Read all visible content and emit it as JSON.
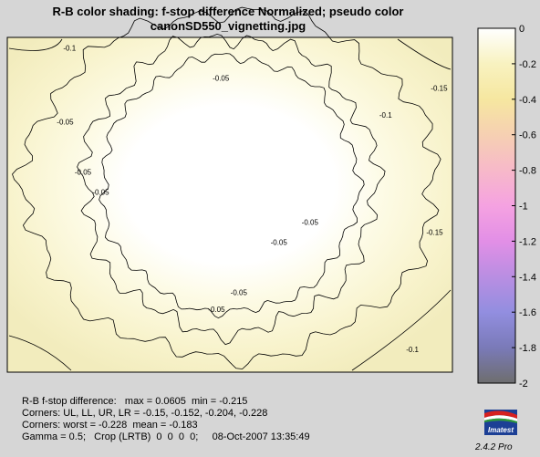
{
  "title_line1": "R-B color shading:  f-stop difference  Normalized;  pseudo color",
  "title_line2": "canonSD550_vignetting.jpg",
  "info": {
    "line1": "R-B f-stop difference:   max = 0.0605  min = -0.215",
    "line2": "Corners: UL, LL, UR, LR = -0.15, -0.152, -0.204, -0.228",
    "line3": "Corners: worst = -0.228  mean = -0.183",
    "line4": "Gamma = 0.5;   Crop (LRTB)  0  0  0  0;     08-Oct-2007 13:35:49"
  },
  "version": "2.4.2  Pro",
  "logo_text": "Imatest",
  "colors": {
    "background": "#d6d6d6",
    "center": "#ffffff",
    "edge": "#f5f1c8",
    "contour": "#000000"
  },
  "chart_data": {
    "type": "heatmap",
    "colorbar": {
      "range": [
        -2,
        0
      ],
      "ticks": [
        "0",
        "-0.2",
        "-0.4",
        "-0.6",
        "-0.8",
        "-1",
        "-1.2",
        "-1.4",
        "-1.6",
        "-1.8",
        "-2"
      ],
      "stops": [
        {
          "value": 0,
          "color": "#ffffff"
        },
        {
          "value": -0.2,
          "color": "#f8f2c0"
        },
        {
          "value": -0.4,
          "color": "#f6e7a0"
        },
        {
          "value": -0.6,
          "color": "#f6d0b2"
        },
        {
          "value": -0.8,
          "color": "#f7b9c9"
        },
        {
          "value": -1.0,
          "color": "#f5a2e1"
        },
        {
          "value": -1.2,
          "color": "#e28fe6"
        },
        {
          "value": -1.4,
          "color": "#b98ee2"
        },
        {
          "value": -1.6,
          "color": "#928ee0"
        },
        {
          "value": -1.8,
          "color": "#7a7ab8"
        },
        {
          "value": -2.0,
          "color": "#6e6e6e"
        }
      ]
    },
    "contour_labels": [
      {
        "text": "-0.1",
        "row": 0.04,
        "col": 0.14
      },
      {
        "text": "-0.05",
        "row": 0.13,
        "col": 0.48
      },
      {
        "text": "-0.05",
        "row": 0.26,
        "col": 0.13
      },
      {
        "text": "-0.05",
        "row": 0.41,
        "col": 0.17
      },
      {
        "text": "-0.05",
        "row": 0.47,
        "col": 0.21
      },
      {
        "text": "-0.1",
        "row": 0.24,
        "col": 0.85
      },
      {
        "text": "-0.15",
        "row": 0.16,
        "col": 0.97
      },
      {
        "text": "-0.05",
        "row": 0.56,
        "col": 0.68
      },
      {
        "text": "-0.05",
        "row": 0.62,
        "col": 0.61
      },
      {
        "text": "-0.15",
        "row": 0.59,
        "col": 0.96
      },
      {
        "text": "-0.1",
        "row": 0.94,
        "col": 0.91
      },
      {
        "text": "-0.05",
        "row": 0.77,
        "col": 0.52
      },
      {
        "text": "-0.05",
        "row": 0.82,
        "col": 0.47
      }
    ]
  }
}
